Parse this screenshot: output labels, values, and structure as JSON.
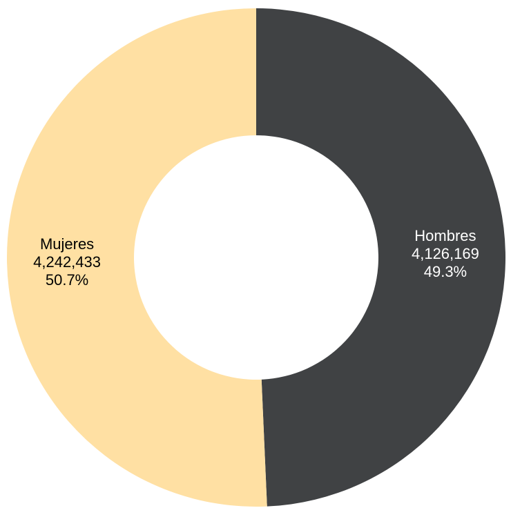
{
  "chart_data": {
    "type": "pie",
    "variant": "donut",
    "title": "",
    "categories": [
      "Hombres",
      "Mujeres"
    ],
    "values": [
      4126169,
      4242433
    ],
    "value_labels": [
      "4,126,169",
      "4,242,433"
    ],
    "percent_labels": [
      "49.3%",
      "50.7%"
    ],
    "colors": [
      "#404244",
      "#FFE0A3"
    ],
    "label_colors": [
      "#ffffff",
      "#000000"
    ],
    "legend": "none",
    "start_angle_deg": 0,
    "direction": "clockwise"
  }
}
